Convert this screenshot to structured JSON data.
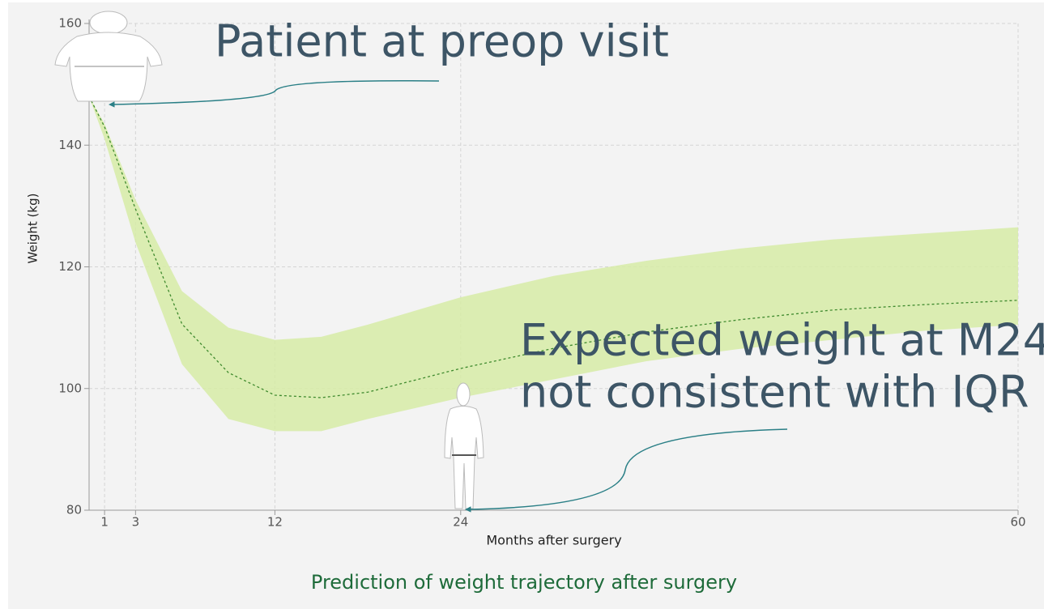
{
  "chart_data": {
    "type": "line",
    "title": "Prediction of weight trajectory after surgery",
    "x_label": "Months after surgery",
    "y_label": "Weight (kg)",
    "x": [
      0,
      1,
      3,
      6,
      9,
      12,
      15,
      18,
      24,
      30,
      36,
      42,
      48,
      54,
      60
    ],
    "line": {
      "color": "#3f8a2e",
      "dashed": true,
      "values": [
        148,
        143,
        129.5,
        110.6,
        102.6,
        98.9,
        98.5,
        99.4,
        103.3,
        106.6,
        109.3,
        111.3,
        112.9,
        113.8,
        114.5
      ]
    },
    "band": {
      "color": "#d6eba6",
      "upper": [
        148,
        143.5,
        131,
        116,
        110,
        108,
        108.5,
        110.5,
        115,
        118.5,
        121,
        123,
        124.5,
        125.5,
        126.5
      ],
      "lower": [
        148,
        141,
        124,
        104,
        95,
        93,
        93,
        95,
        98.5,
        101.5,
        104.5,
        106.5,
        108,
        109.5,
        110.5
      ]
    },
    "xlim": [
      0,
      60
    ],
    "ylim": [
      80,
      160
    ],
    "xticks": [
      1,
      3,
      12,
      24,
      60
    ],
    "yticks": [
      80,
      100,
      120,
      140,
      160
    ],
    "grid": true,
    "annotations": [
      {
        "lines": [
          "Patient at preop visit"
        ]
      },
      {
        "lines": [
          "Expected weight at M24",
          "not consistent with IQR"
        ]
      }
    ]
  }
}
